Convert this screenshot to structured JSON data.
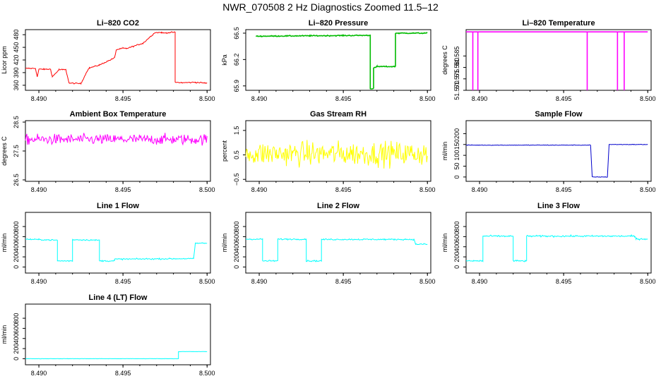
{
  "title": "NWR_070508  2 Hz Diagnostics Zoomed 11.5–12",
  "chart_data": [
    {
      "type": "line",
      "title": "Li–820 CO2",
      "ylabel": "Licor ppm",
      "color": "#ff0000",
      "xlim": [
        8.4892,
        8.5002
      ],
      "ylim": [
        348,
        492
      ],
      "xticks": [
        8.49,
        8.495,
        8.5
      ],
      "xtick_labels": [
        "8.490",
        "8.495",
        "8.500"
      ],
      "yticks": [
        360,
        390,
        420,
        450,
        480
      ],
      "ytick_labels": [
        "360",
        "390",
        "420",
        "450",
        "480"
      ],
      "series": [
        {
          "name": "CO2",
          "x": [
            8.4892,
            8.4898,
            8.4899,
            8.49,
            8.4903,
            8.4907,
            8.4908,
            8.4912,
            8.4914,
            8.4916,
            8.4918,
            8.4925,
            8.4929,
            8.493,
            8.4936,
            8.4945,
            8.4946,
            8.495,
            8.4952,
            8.4962,
            8.4969,
            8.4973,
            8.4974,
            8.4981,
            8.4981,
            8.4985,
            8.4993,
            8.5
          ],
          "y": [
            400,
            400,
            380,
            398,
            398,
            398,
            380,
            397,
            397,
            397,
            365,
            364,
            396,
            401,
            408,
            425,
            444,
            448,
            447,
            460,
            485,
            485,
            484,
            486,
            367,
            366,
            367,
            365
          ]
        }
      ],
      "noise": 1.0
    },
    {
      "type": "line",
      "title": "Li–820 Pressure",
      "ylabel": "kPa",
      "color": "#00bb00",
      "xlim": [
        8.4892,
        8.5002
      ],
      "ylim": [
        65.85,
        66.54
      ],
      "xticks": [
        8.49,
        8.495,
        8.5
      ],
      "xtick_labels": [
        "8.490",
        "8.495",
        "8.500"
      ],
      "yticks": [
        65.9,
        66.2,
        66.5
      ],
      "ytick_labels": [
        "65.9",
        "66.2",
        "66.5"
      ],
      "series": [
        {
          "name": "Pressure",
          "x": [
            8.4898,
            8.493,
            8.4966,
            8.4966,
            8.4968,
            8.4968,
            8.497,
            8.4981,
            8.4981,
            8.4983,
            8.5
          ],
          "y": [
            66.465,
            66.47,
            66.475,
            65.87,
            65.87,
            66.1,
            66.12,
            66.12,
            66.5,
            66.5,
            66.5
          ]
        }
      ],
      "noise": 0.004
    },
    {
      "type": "line",
      "title": "Li–820 Temperature",
      "ylabel": "degrees C",
      "color": "#ff00ff",
      "xlim": [
        8.4892,
        8.5002
      ],
      "ylim": [
        51.57,
        51.5965
      ],
      "xticks": [
        8.49,
        8.495,
        8.5
      ],
      "xtick_labels": [
        "8.490",
        "8.495",
        "8.500"
      ],
      "yticks": [
        51.57,
        51.575,
        51.58,
        51.585
      ],
      "ytick_labels": [
        "51.570",
        "51.575",
        "51.580",
        "51.585"
      ],
      "series": [
        {
          "name": "Temperature",
          "x": [
            8.4892,
            8.5
          ],
          "y": [
            51.5955,
            51.5955
          ]
        }
      ],
      "drops": [
        8.4896,
        8.4899,
        8.4964,
        8.4982,
        8.4986
      ],
      "noise": 0
    },
    {
      "type": "line",
      "title": "Ambient Box Temperature",
      "ylabel": "degrees C",
      "color": "#ff00ff",
      "xlim": [
        8.4892,
        8.5002
      ],
      "ylim": [
        26.45,
        28.55
      ],
      "xticks": [
        8.49,
        8.495,
        8.5
      ],
      "xtick_labels": [
        "8.490",
        "8.495",
        "8.500"
      ],
      "yticks": [
        26.5,
        27.5,
        28.5
      ],
      "ytick_labels": [
        "26.5",
        "27.5",
        "28.5"
      ],
      "series": [
        {
          "name": "Ambient",
          "x": [
            8.4892,
            8.5
          ],
          "y": [
            27.9,
            27.9
          ]
        }
      ],
      "noise": 0.13
    },
    {
      "type": "line",
      "title": "Gas Stream RH",
      "ylabel": "percent",
      "color": "#ffff00",
      "xlim": [
        8.4892,
        8.5002
      ],
      "ylim": [
        -0.58,
        1.9
      ],
      "xticks": [
        8.49,
        8.495,
        8.5
      ],
      "xtick_labels": [
        "8.490",
        "8.495",
        "8.500"
      ],
      "yticks": [
        -0.5,
        0.5,
        1.5
      ],
      "ytick_labels": [
        "−0.5",
        "0.5",
        "1.5"
      ],
      "series": [
        {
          "name": "RH",
          "x": [
            8.4892,
            8.5
          ],
          "y": [
            0.55,
            0.55
          ]
        }
      ],
      "noise": 0.35
    },
    {
      "type": "line",
      "title": "Sample Flow",
      "ylabel": "ml/min",
      "color": "#0000cc",
      "xlim": [
        8.4892,
        8.5002
      ],
      "ylim": [
        -20,
        260
      ],
      "xticks": [
        8.49,
        8.495,
        8.5
      ],
      "xtick_labels": [
        "8.490",
        "8.495",
        "8.500"
      ],
      "yticks": [
        0,
        50,
        100,
        150,
        200
      ],
      "ytick_labels": [
        "0",
        "50",
        "100",
        "150",
        "200"
      ],
      "series": [
        {
          "name": "Sample",
          "x": [
            8.4892,
            8.4966,
            8.4967,
            8.4976,
            8.4977,
            8.5
          ],
          "y": [
            147,
            147,
            0,
            0,
            150,
            150
          ]
        }
      ],
      "noise": 1.0
    },
    {
      "type": "line",
      "title": "Line 1 Flow",
      "ylabel": "ml/min",
      "color": "#00ffff",
      "xlim": [
        8.4892,
        8.5002
      ],
      "ylim": [
        -120,
        1080
      ],
      "xticks": [
        8.49,
        8.495,
        8.5
      ],
      "xtick_labels": [
        "8.490",
        "8.495",
        "8.500"
      ],
      "yticks": [
        0,
        200,
        400,
        600,
        800
      ],
      "ytick_labels": [
        "0",
        "200",
        "400",
        "600",
        "800"
      ],
      "series": [
        {
          "name": "Line 1",
          "x": [
            8.4892,
            8.4911,
            8.4911,
            8.492,
            8.492,
            8.4936,
            8.4936,
            8.4945,
            8.4945,
            8.4992,
            8.4993,
            8.5
          ],
          "y": [
            550,
            530,
            120,
            120,
            540,
            530,
            120,
            120,
            155,
            165,
            470,
            470
          ]
        }
      ],
      "noise": 9
    },
    {
      "type": "line",
      "title": "Line 2 Flow",
      "ylabel": "ml/min",
      "color": "#00ffff",
      "xlim": [
        8.4892,
        8.5002
      ],
      "ylim": [
        -120,
        1080
      ],
      "xticks": [
        8.49,
        8.495,
        8.5
      ],
      "xtick_labels": [
        "8.490",
        "8.495",
        "8.500"
      ],
      "yticks": [
        0,
        200,
        400,
        600,
        800
      ],
      "ytick_labels": [
        "0",
        "200",
        "400",
        "600",
        "800"
      ],
      "series": [
        {
          "name": "Line 2",
          "x": [
            8.4892,
            8.4902,
            8.4902,
            8.4911,
            8.4911,
            8.4928,
            8.4928,
            8.4937,
            8.4937,
            8.4992,
            8.4993,
            8.5
          ],
          "y": [
            550,
            550,
            120,
            120,
            550,
            550,
            120,
            120,
            545,
            545,
            450,
            450
          ]
        }
      ],
      "noise": 10
    },
    {
      "type": "line",
      "title": "Line 3 Flow",
      "ylabel": "ml/min",
      "color": "#00ffff",
      "xlim": [
        8.4892,
        8.5002
      ],
      "ylim": [
        -120,
        1080
      ],
      "xticks": [
        8.49,
        8.495,
        8.5
      ],
      "xtick_labels": [
        "8.490",
        "8.495",
        "8.500"
      ],
      "yticks": [
        0,
        200,
        400,
        600,
        800
      ],
      "ytick_labels": [
        "0",
        "200",
        "400",
        "600",
        "800"
      ],
      "series": [
        {
          "name": "Line 3",
          "x": [
            8.4892,
            8.4902,
            8.4902,
            8.492,
            8.492,
            8.4928,
            8.4928,
            8.4992,
            8.4993,
            8.5
          ],
          "y": [
            120,
            120,
            610,
            610,
            120,
            120,
            610,
            610,
            555,
            555
          ]
        }
      ],
      "noise": 12
    },
    {
      "type": "line",
      "title": "Line 4 (LT) Flow",
      "ylabel": "ml/min",
      "color": "#00ffff",
      "xlim": [
        8.4892,
        8.5002
      ],
      "ylim": [
        -120,
        1080
      ],
      "xticks": [
        8.49,
        8.495,
        8.5
      ],
      "xtick_labels": [
        "8.490",
        "8.495",
        "8.500"
      ],
      "yticks": [
        0,
        200,
        400,
        600,
        800
      ],
      "ytick_labels": [
        "0",
        "200",
        "400",
        "600",
        "800"
      ],
      "series": [
        {
          "name": "Line 4",
          "x": [
            8.4892,
            8.4983,
            8.4983,
            8.5
          ],
          "y": [
            0,
            0,
            140,
            140
          ]
        }
      ],
      "noise": 2
    }
  ]
}
